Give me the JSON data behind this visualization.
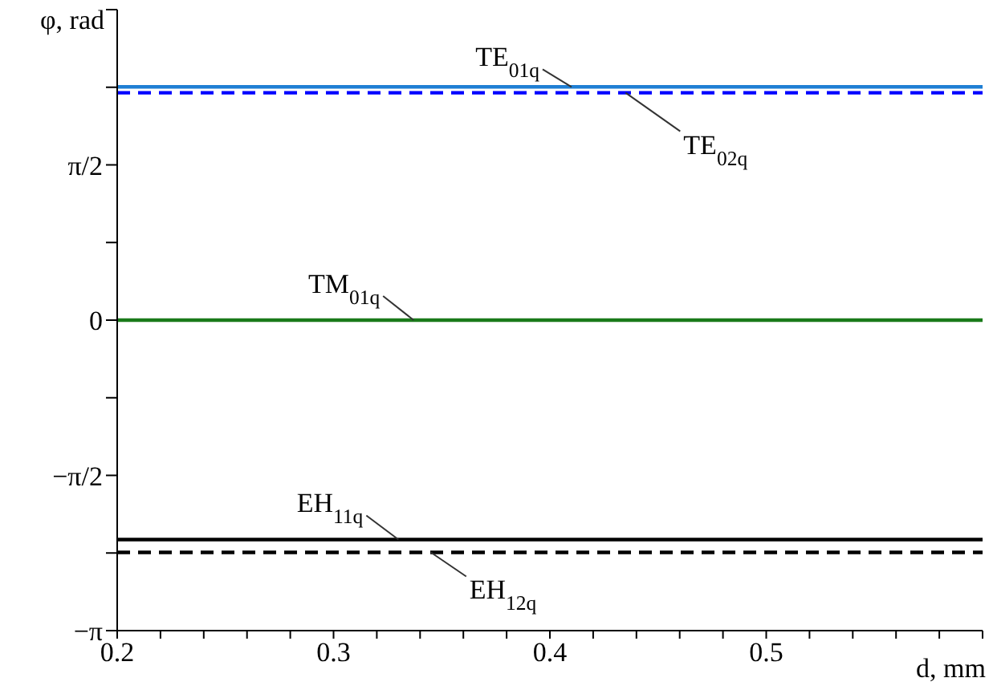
{
  "chart_data": {
    "type": "line",
    "xlabel": "d, mm",
    "ylabel": "φ, rad",
    "x": [
      0.2,
      0.6
    ],
    "series": [
      {
        "color": "#1f7fd4",
        "line_style": "solid",
        "values": [
          2.36,
          2.36
        ]
      },
      {
        "color": "#0000ff",
        "line_style": "dashed",
        "values": [
          2.3,
          2.3
        ]
      },
      {
        "color": "#1a7a1a",
        "line_style": "solid",
        "values": [
          0,
          0
        ]
      },
      {
        "color": "#000000",
        "line_style": "solid",
        "values": [
          -2.22,
          -2.22
        ]
      },
      {
        "color": "#000000",
        "line_style": "dashed",
        "values": [
          -2.35,
          -2.35
        ]
      }
    ],
    "xlim": [
      0.2,
      0.6
    ],
    "xticks": [
      0.2,
      {
        "value": 0.22,
        "label": null
      },
      {
        "value": 0.24,
        "label": null
      },
      {
        "value": 0.26,
        "label": null
      },
      {
        "value": 0.28,
        "label": null
      },
      0.3,
      {
        "value": 0.32,
        "label": null
      },
      {
        "value": 0.34,
        "label": null
      },
      {
        "value": 0.36,
        "label": null
      },
      {
        "value": 0.38,
        "label": null
      },
      0.4,
      {
        "value": 0.42,
        "label": null
      },
      {
        "value": 0.44,
        "label": null
      },
      {
        "value": 0.46,
        "label": null
      },
      {
        "value": 0.48,
        "label": null
      },
      0.5,
      {
        "value": 0.52,
        "label": null
      },
      {
        "value": 0.54,
        "label": null
      },
      {
        "value": 0.56,
        "label": null
      },
      {
        "value": 0.58,
        "label": null
      },
      {
        "value": 0.6,
        "label": null
      }
    ],
    "ylim": [
      -3.1416,
      3.1416
    ],
    "yticks": [
      {
        "value": -3.1416,
        "label": "−π"
      },
      {
        "value": -2.3562,
        "label": null
      },
      {
        "value": -1.5708,
        "label": "−π/2"
      },
      {
        "value": -0.7854,
        "label": null
      },
      0,
      {
        "value": 0.7854,
        "label": null
      },
      {
        "value": 1.5708,
        "label": "π/2"
      },
      {
        "value": 2.3562,
        "label": null
      },
      {
        "value": 3.1416,
        "label": null
      }
    ],
    "grid": false,
    "legend": false,
    "marker": "none",
    "annotations": [
      {
        "text": "TE$_{01q}$",
        "x": 0.41,
        "y": 2.36
      },
      {
        "text": "TE$_{02q}$",
        "x": 0.435,
        "y": 2.3
      },
      {
        "text": "TM$_{01q}$",
        "x": 0.337,
        "y": 0
      },
      {
        "text": "EH$_{11q}$",
        "x": 0.33,
        "y": -2.22
      },
      {
        "text": "EH$_{12q}$",
        "x": 0.345,
        "y": -2.35
      }
    ]
  }
}
